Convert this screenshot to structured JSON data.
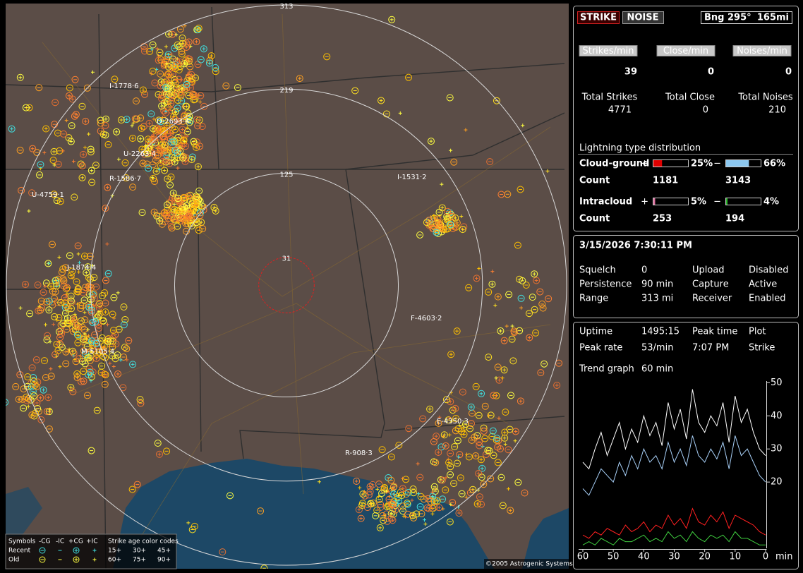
{
  "map": {
    "rings": [
      313,
      219,
      125,
      31
    ],
    "ring_colors": [
      "#d8d8d8",
      "#d8d8d8",
      "#d8d8d8",
      "#e02020"
    ],
    "storm_labels": [
      "I-1778·6",
      "D-2693·4",
      "U-2263·4",
      "R-1586·7",
      "U-4759·1",
      "J-1874·4",
      "M-5105·4",
      "I-1531·2",
      "F-4603·2",
      "E-4350·3",
      "R-908·3"
    ],
    "copyright": "©2005 Astrogenic Systems",
    "legend": {
      "symbols_label": "Symbols",
      "types": [
        "-CG",
        "-IC",
        "+CG",
        "+IC"
      ],
      "rows": [
        "Recent",
        "Old"
      ],
      "age_title": "Strike age color codes",
      "ages": [
        [
          "15+",
          "30+",
          "45+"
        ],
        [
          "60+",
          "75+",
          "90+"
        ]
      ]
    }
  },
  "status": {
    "buttons": [
      "STRIKE",
      "NOISE"
    ],
    "bearing": "Bng 295°",
    "distance": "165mi",
    "rates": [
      {
        "label": "Strikes/min",
        "value": 39,
        "total_label": "Total Strikes",
        "total": 4771
      },
      {
        "label": "Close/min",
        "value": 0,
        "total_label": "Total Close",
        "total": 0
      },
      {
        "label": "Noises/min",
        "value": 0,
        "total_label": "Total Noises",
        "total": 210
      }
    ]
  },
  "distribution": {
    "title": "Lightning type distribution",
    "count_label": "Count",
    "rows": [
      {
        "name": "Cloud-ground",
        "signs": [
          "+",
          "−"
        ],
        "values": [
          25,
          66
        ],
        "value_labels": [
          "25%",
          "66%"
        ],
        "counts": [
          1181,
          3143
        ],
        "colors": [
          "#e00000",
          "#8cc8f0"
        ]
      },
      {
        "name": "Intracloud",
        "signs": [
          "+",
          "−"
        ],
        "values": [
          5,
          4
        ],
        "value_labels": [
          "5%",
          "4%"
        ],
        "counts": [
          253,
          194
        ],
        "colors": [
          "#e070a0",
          "#30c030"
        ]
      }
    ]
  },
  "clock": {
    "datetime": "3/15/2026 7:30:11 PM",
    "rows": [
      [
        "Squelch",
        "0",
        "Upload",
        "Disabled"
      ],
      [
        "Persistence",
        "90 min",
        "Capture",
        "Active"
      ],
      [
        "Range",
        "313 mi",
        "Receiver",
        "Enabled"
      ]
    ]
  },
  "stats": {
    "rows": [
      [
        "Uptime",
        "1495:15",
        "Peak time",
        "Plot"
      ],
      [
        "Peak rate",
        "53/min",
        "7:07 PM",
        "Strike"
      ]
    ],
    "trend_label": "Trend graph",
    "trend_window": "60 min"
  },
  "chart_data": {
    "type": "line",
    "x": [
      60,
      58,
      56,
      54,
      52,
      50,
      48,
      46,
      44,
      42,
      40,
      38,
      36,
      34,
      32,
      30,
      28,
      26,
      24,
      22,
      20,
      18,
      16,
      14,
      12,
      10,
      8,
      6,
      4,
      2,
      0
    ],
    "xlim": [
      60,
      0
    ],
    "xticks": [
      60,
      50,
      40,
      30,
      20,
      10,
      0
    ],
    "xlabel": "min",
    "ylim": [
      0,
      50.5
    ],
    "yticks": [
      20,
      30,
      40,
      50
    ],
    "series": [
      {
        "color": "#ffffff",
        "values": [
          26,
          24,
          30,
          35,
          28,
          33,
          38,
          30,
          36,
          32,
          40,
          34,
          38,
          31,
          44,
          36,
          42,
          33,
          48,
          38,
          35,
          40,
          37,
          44,
          32,
          46,
          38,
          42,
          35,
          30,
          28
        ]
      },
      {
        "color": "#a8d0f8",
        "values": [
          18,
          16,
          20,
          24,
          22,
          20,
          26,
          22,
          28,
          24,
          30,
          26,
          28,
          24,
          32,
          26,
          30,
          25,
          34,
          28,
          26,
          30,
          27,
          32,
          24,
          34,
          28,
          30,
          26,
          22,
          20
        ]
      },
      {
        "color": "#ff2020",
        "values": [
          4,
          3,
          5,
          4,
          6,
          5,
          4,
          7,
          5,
          6,
          8,
          5,
          7,
          6,
          10,
          7,
          9,
          6,
          12,
          8,
          7,
          10,
          8,
          11,
          6,
          10,
          9,
          8,
          7,
          5,
          4
        ]
      },
      {
        "color": "#40d040",
        "values": [
          1,
          2,
          1,
          3,
          2,
          1,
          3,
          2,
          2,
          3,
          4,
          2,
          3,
          2,
          5,
          3,
          4,
          2,
          5,
          3,
          2,
          4,
          3,
          4,
          2,
          5,
          3,
          3,
          2,
          1,
          1
        ]
      }
    ]
  }
}
